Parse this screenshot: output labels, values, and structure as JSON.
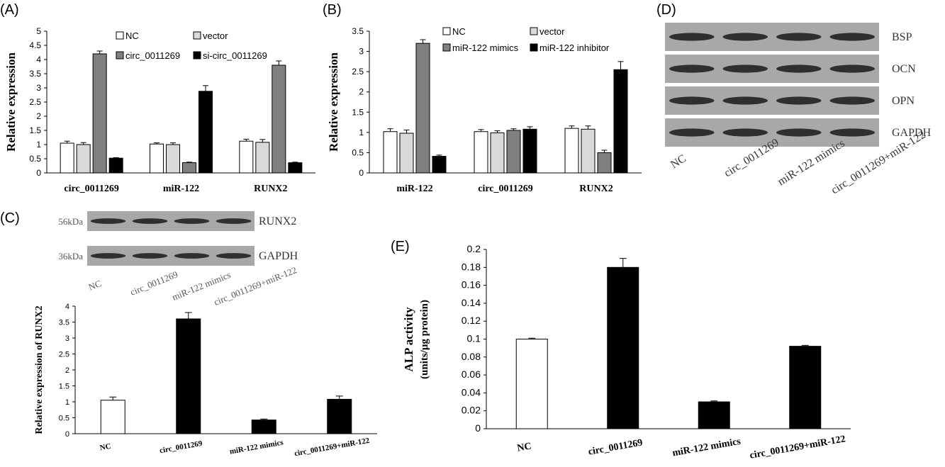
{
  "panels": {
    "A": "(A)",
    "B": "(B)",
    "C": "(C)",
    "D": "(D)",
    "E": "(E)"
  },
  "colors": {
    "NC": "#ffffff",
    "vector": "#d9d9d9",
    "treat": "#808080",
    "inhib": "#000000",
    "blot_bg": "#a8a8a8",
    "band": "#1a1a1a"
  },
  "blot_d": {
    "rows": [
      "BSP",
      "OCN",
      "OPN",
      "GAPDH"
    ],
    "lanes": [
      "NC",
      "circ_0011269",
      "miR-122 mimics",
      "circ_0011269+miR-122"
    ]
  },
  "blot_c": {
    "rows": [
      {
        "size": "56kDa",
        "name": "RUNX2"
      },
      {
        "size": "36kDa",
        "name": "GAPDH"
      }
    ],
    "lanes": [
      "NC",
      "circ_0011269",
      "miR-122 mimics",
      "circ_0011269+miR-122"
    ]
  },
  "chart_data": [
    {
      "id": "A",
      "type": "bar",
      "ylabel": "Relative expression",
      "ylim": [
        0,
        5
      ],
      "yticks": [
        "0",
        "0.5",
        "1",
        "1.5",
        "2",
        "2.5",
        "3",
        "3.5",
        "4",
        "4.5",
        "5"
      ],
      "categories": [
        "circ_0011269",
        "miR-122",
        "RUNX2"
      ],
      "legend_position": "top-right",
      "series": [
        {
          "name": "NC",
          "values": [
            1.05,
            1.02,
            1.12
          ],
          "errors": [
            0.07,
            0.04,
            0.07
          ]
        },
        {
          "name": "vector",
          "values": [
            1.0,
            1.0,
            1.08
          ],
          "errors": [
            0.07,
            0.06,
            0.1
          ]
        },
        {
          "name": "circ_0011269",
          "values": [
            4.2,
            0.36,
            3.8
          ],
          "errors": [
            0.1,
            0.02,
            0.15
          ]
        },
        {
          "name": "si-circ_0011269",
          "values": [
            0.52,
            2.88,
            0.36
          ],
          "errors": [
            0.02,
            0.2,
            0.02
          ]
        }
      ]
    },
    {
      "id": "B",
      "type": "bar",
      "ylabel": "Relative expression",
      "ylim": [
        0,
        3.5
      ],
      "yticks": [
        "0",
        "0.5",
        "1",
        "1.5",
        "2",
        "2.5",
        "3",
        "3.5"
      ],
      "categories": [
        "miR-122",
        "circ_0011269",
        "RUNX2"
      ],
      "legend_position": "top-right",
      "series": [
        {
          "name": "NC",
          "values": [
            1.02,
            1.02,
            1.1
          ],
          "errors": [
            0.07,
            0.05,
            0.06
          ]
        },
        {
          "name": "vector",
          "values": [
            0.98,
            0.99,
            1.08
          ],
          "errors": [
            0.08,
            0.05,
            0.08
          ]
        },
        {
          "name": "miR-122 mimics",
          "values": [
            3.2,
            1.05,
            0.5
          ],
          "errors": [
            0.09,
            0.04,
            0.06
          ]
        },
        {
          "name": "miR-122 inhibitor",
          "values": [
            0.41,
            1.08,
            2.55
          ],
          "errors": [
            0.03,
            0.06,
            0.2
          ]
        }
      ]
    },
    {
      "id": "C",
      "type": "bar",
      "ylabel": "Relative expression of RUNX2",
      "ylim": [
        0,
        4
      ],
      "yticks": [
        "0",
        "0.5",
        "1",
        "1.5",
        "2",
        "2.5",
        "3",
        "3.5",
        "4"
      ],
      "categories": [
        "NC",
        "circ_0011269",
        "miR-122 mimics",
        "circ_0011269+miR-122"
      ],
      "values": [
        1.05,
        3.6,
        0.43,
        1.08
      ],
      "errors": [
        0.1,
        0.2,
        0.03,
        0.1
      ],
      "colors": [
        "#ffffff",
        "#000000",
        "#000000",
        "#000000"
      ]
    },
    {
      "id": "E",
      "type": "bar",
      "ylabel": "ALP activity",
      "ylabel2": "(units/μg protein)",
      "ylim": [
        0,
        0.2
      ],
      "yticks": [
        "0",
        "0.02",
        "0.04",
        "0.06",
        "0.08",
        "0.1",
        "0.12",
        "0.14",
        "0.16",
        "0.18",
        "0.2"
      ],
      "categories": [
        "NC",
        "circ_0011269",
        "miR-122 mimics",
        "circ_0011269+miR-122"
      ],
      "values": [
        0.1,
        0.18,
        0.03,
        0.092
      ],
      "errors": [
        0.001,
        0.01,
        0.001,
        0.001
      ],
      "colors": [
        "#ffffff",
        "#000000",
        "#000000",
        "#000000"
      ]
    }
  ]
}
